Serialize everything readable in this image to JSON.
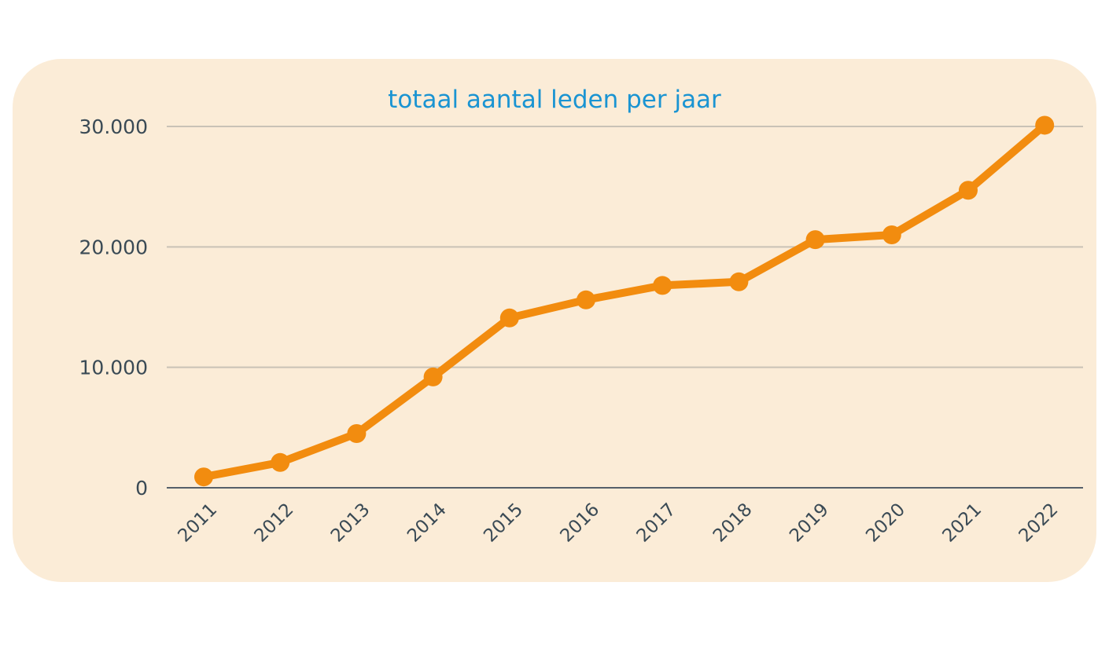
{
  "chart_data": {
    "type": "line",
    "title": "totaal aantal leden per jaar",
    "xlabel": "",
    "ylabel": "",
    "categories": [
      "2011",
      "2012",
      "2013",
      "2014",
      "2015",
      "2016",
      "2017",
      "2018",
      "2019",
      "2020",
      "2021",
      "2022"
    ],
    "y_tick_labels": [
      "0",
      "10.000",
      "20.000",
      "30.000"
    ],
    "y_tick_values": [
      0,
      10000,
      20000,
      30000
    ],
    "ylim": [
      0,
      30000
    ],
    "grid": true,
    "legend": "none",
    "series": [
      {
        "values": [
          900,
          2100,
          4500,
          9200,
          14100,
          15600,
          16800,
          17100,
          20600,
          21000,
          24700,
          30100
        ],
        "color": "#f28c0f"
      }
    ],
    "colors": {
      "card_background": "#fbecd7",
      "title": "#1a94d2",
      "tick_text": "#3a4a55",
      "gridline": "#c9c2b6",
      "axis_line": "#55606a"
    }
  }
}
